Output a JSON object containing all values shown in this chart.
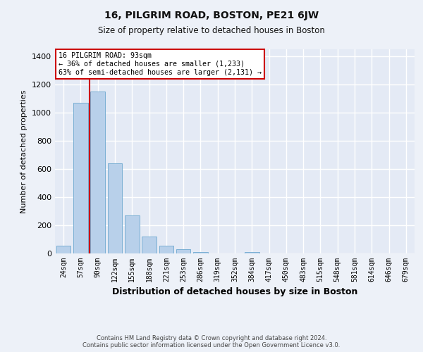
{
  "title_line1": "16, PILGRIM ROAD, BOSTON, PE21 6JW",
  "title_line2": "Size of property relative to detached houses in Boston",
  "xlabel": "Distribution of detached houses by size in Boston",
  "ylabel": "Number of detached properties",
  "categories": [
    "24sqm",
    "57sqm",
    "90sqm",
    "122sqm",
    "155sqm",
    "188sqm",
    "221sqm",
    "253sqm",
    "286sqm",
    "319sqm",
    "352sqm",
    "384sqm",
    "417sqm",
    "450sqm",
    "483sqm",
    "515sqm",
    "548sqm",
    "581sqm",
    "614sqm",
    "646sqm",
    "679sqm"
  ],
  "values": [
    55,
    1070,
    1150,
    640,
    270,
    120,
    55,
    30,
    8,
    0,
    0,
    8,
    0,
    0,
    0,
    0,
    0,
    0,
    0,
    0,
    0
  ],
  "bar_color": "#b8d0ea",
  "bar_edge_color": "#7aafd4",
  "red_line_x": 1.5,
  "red_line_color": "#cc0000",
  "annotation_text": "16 PILGRIM ROAD: 93sqm\n← 36% of detached houses are smaller (1,233)\n63% of semi-detached houses are larger (2,131) →",
  "annotation_box_color": "#ffffff",
  "annotation_box_edge": "#cc0000",
  "ylim": [
    0,
    1450
  ],
  "yticks": [
    0,
    200,
    400,
    600,
    800,
    1000,
    1200,
    1400
  ],
  "footer_line1": "Contains HM Land Registry data © Crown copyright and database right 2024.",
  "footer_line2": "Contains public sector information licensed under the Open Government Licence v3.0.",
  "bg_color": "#edf1f8",
  "plot_bg_color": "#e4eaf5",
  "grid_color": "#ffffff"
}
